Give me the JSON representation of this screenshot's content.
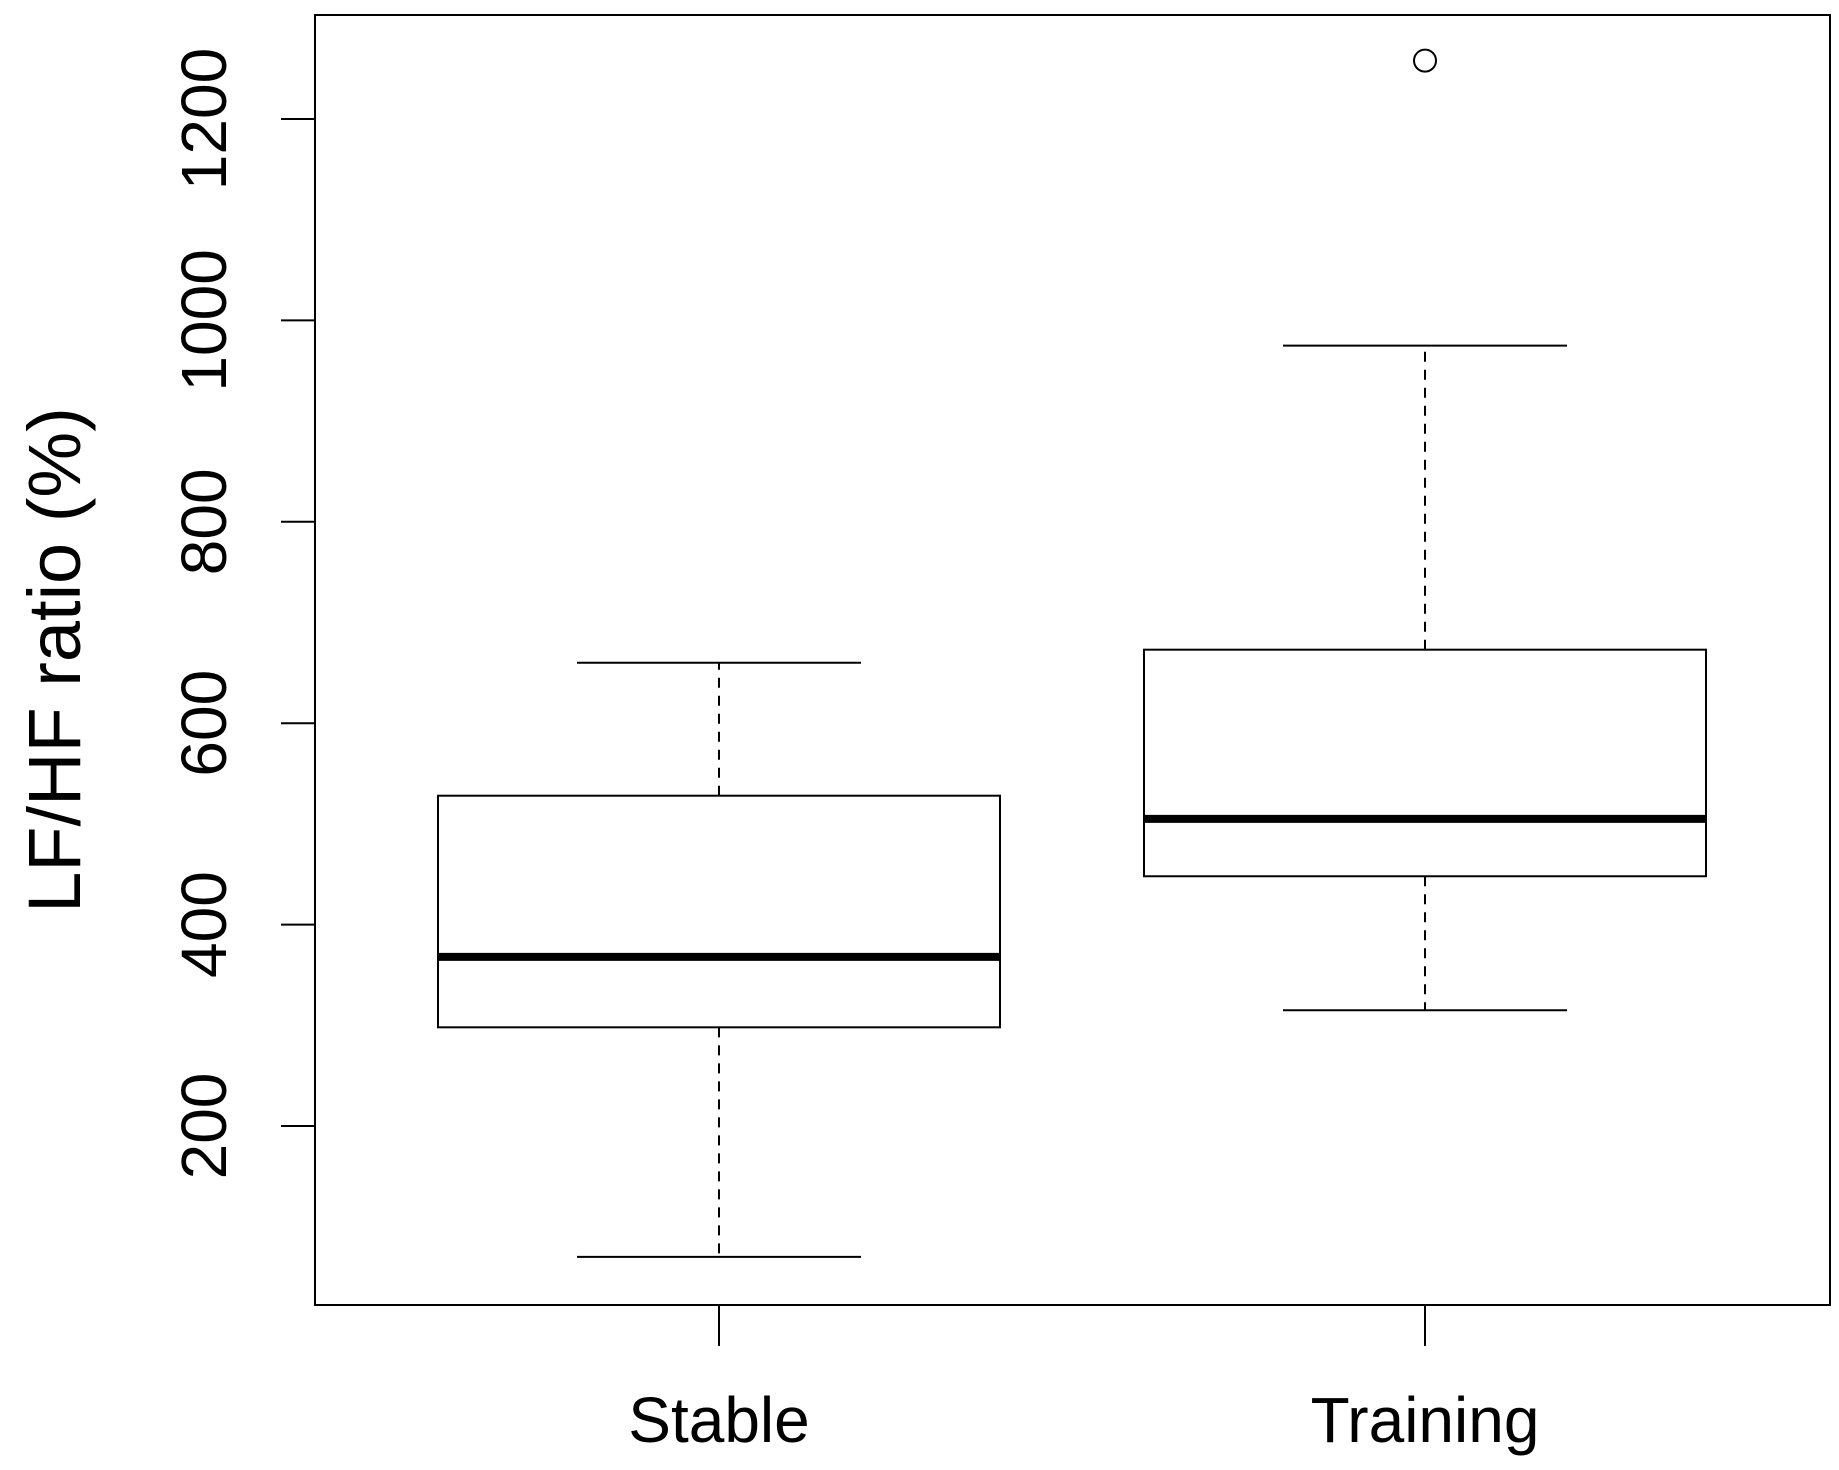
{
  "chart_data": {
    "type": "boxplot",
    "title": "",
    "xlabel": "",
    "ylabel": "LF/HF ratio (%)",
    "categories": [
      "Stable",
      "Training"
    ],
    "ylim": [
      30,
      1300
    ],
    "yticks": [
      200,
      400,
      600,
      800,
      1000,
      1200
    ],
    "ytick_labels": [
      "200",
      "400",
      "600",
      "800",
      "1000",
      "1200"
    ],
    "grid": false,
    "legend": "none",
    "boxes": [
      {
        "category": "Stable",
        "whisker_low": 70,
        "q1": 298,
        "median": 368,
        "q3": 528,
        "whisker_high": 660,
        "outliers": []
      },
      {
        "category": "Training",
        "whisker_low": 315,
        "q1": 448,
        "median": 505,
        "q3": 673,
        "whisker_high": 975,
        "outliers": [
          1258
        ]
      }
    ],
    "colors": {
      "line": "#000000",
      "box_fill": "#ffffff"
    }
  }
}
